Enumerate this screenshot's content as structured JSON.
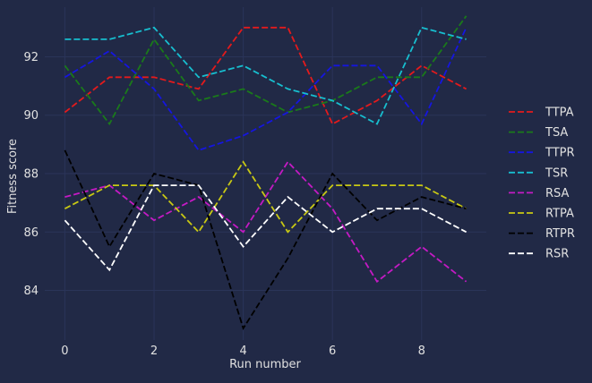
{
  "theme": {
    "background": "#212946",
    "grid_color": "#2A3459",
    "text_color": "#E0E0E0"
  },
  "chart_data": {
    "type": "line",
    "title": "",
    "xlabel": "Run number",
    "ylabel": "Fitness score",
    "xlim": [
      -0.45,
      9.45
    ],
    "ylim": [
      82.3,
      93.7
    ],
    "xticks": [
      0,
      2,
      4,
      6,
      8
    ],
    "yticks": [
      84,
      86,
      88,
      90,
      92
    ],
    "grid": true,
    "legend_position": "center-right",
    "line_style": "dashed",
    "x": [
      0,
      1,
      2,
      3,
      4,
      5,
      6,
      7,
      8,
      9
    ],
    "series": [
      {
        "name": "TTPA",
        "color": "#E31A1C",
        "values": [
          90.1,
          91.3,
          91.3,
          90.9,
          93.0,
          93.0,
          89.7,
          90.5,
          91.7,
          90.9
        ]
      },
      {
        "name": "TSA",
        "color": "#1A7A1A",
        "values": [
          91.7,
          89.7,
          92.6,
          90.5,
          90.9,
          90.1,
          90.5,
          91.3,
          91.3,
          93.4
        ]
      },
      {
        "name": "TTPR",
        "color": "#1515E0",
        "values": [
          91.3,
          92.2,
          90.9,
          88.8,
          89.3,
          90.1,
          91.7,
          91.7,
          89.7,
          93.0
        ]
      },
      {
        "name": "TSR",
        "color": "#17BECF",
        "values": [
          92.6,
          92.6,
          93.0,
          91.3,
          91.7,
          90.9,
          90.5,
          89.7,
          93.0,
          92.6
        ]
      },
      {
        "name": "RSA",
        "color": "#C41AC4",
        "values": [
          87.2,
          87.6,
          86.4,
          87.2,
          86.0,
          88.4,
          86.8,
          84.3,
          85.5,
          84.3
        ]
      },
      {
        "name": "RTPA",
        "color": "#C8C814",
        "values": [
          86.8,
          87.6,
          87.6,
          86.0,
          88.4,
          86.0,
          87.6,
          87.6,
          87.6,
          86.8
        ]
      },
      {
        "name": "RTPR",
        "color": "#000000",
        "values": [
          88.8,
          85.5,
          88.0,
          87.6,
          82.7,
          85.1,
          88.0,
          86.4,
          87.2,
          86.8
        ]
      },
      {
        "name": "RSR",
        "color": "#FFFFFF",
        "values": [
          86.4,
          84.7,
          87.6,
          87.6,
          85.5,
          87.2,
          86.0,
          86.8,
          86.8,
          86.0
        ]
      }
    ]
  }
}
